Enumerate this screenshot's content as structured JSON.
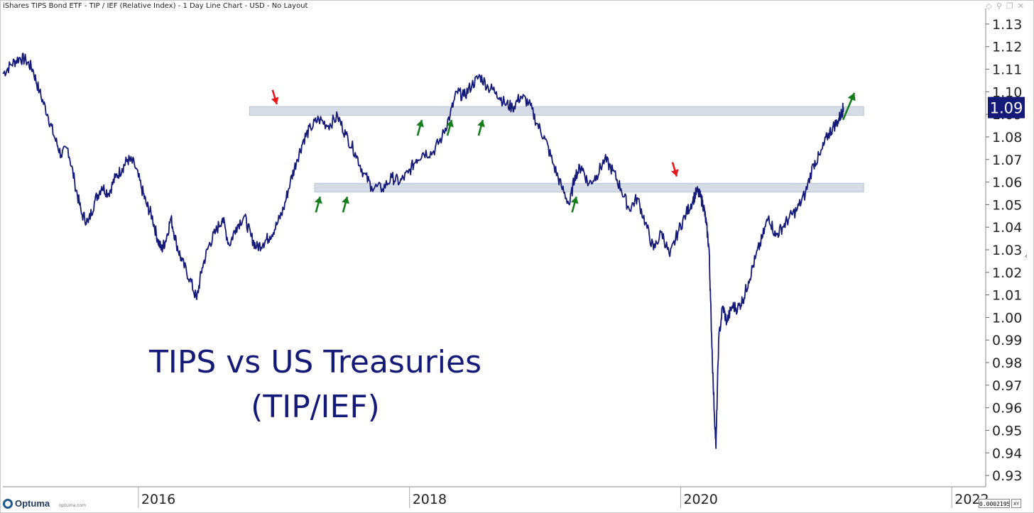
{
  "window": {
    "title": "iShares TIPS Bond ETF - TIP / IEF (Relative Index) - 1 Day Line Chart - USD - No Layout"
  },
  "footer": {
    "brand": "Optuma",
    "brand_url": "optuma.com",
    "corner_value": "0.0002195",
    "corner_xy": "XY"
  },
  "colors": {
    "line": "#141a78",
    "band": "#d6dce6",
    "red_arrow": "#e8171b",
    "green_arrow": "#167d1c",
    "price_badge": "#141a78",
    "annotation_text": "#141a78"
  },
  "chart_data": {
    "type": "line",
    "title": "",
    "annotation": [
      "TIPS vs US Treasuries",
      "(TIP/IEF)"
    ],
    "xlabel": "",
    "ylabel": "",
    "x_range": [
      2015.0,
      2022.25
    ],
    "ylim": [
      0.925,
      1.135
    ],
    "y_ticks": [
      0.93,
      0.94,
      0.95,
      0.96,
      0.97,
      0.98,
      0.99,
      1.0,
      1.01,
      1.02,
      1.03,
      1.04,
      1.05,
      1.06,
      1.07,
      1.08,
      1.09,
      1.1,
      1.11,
      1.12,
      1.13
    ],
    "y_tick_labels": [
      "0.93",
      "0.94",
      "0.95",
      "0.96",
      "0.97",
      "0.98",
      "0.99",
      "1.00",
      "1.01",
      "1.02",
      "1.03",
      "1.04",
      "1.05",
      "1.06",
      "1.07",
      "1.08",
      "1.09",
      "1.10",
      "1.11",
      "1.12",
      "1.13"
    ],
    "x_ticks": [
      2016,
      2018,
      2020,
      2022
    ],
    "x_tick_labels": [
      "2016",
      "2018",
      "2020",
      "2022"
    ],
    "last_value_label": "1.09",
    "last_value": 1.093,
    "series": [
      {
        "name": "TIP / IEF",
        "x": [
          2015.0,
          2015.06,
          2015.12,
          2015.17,
          2015.22,
          2015.27,
          2015.33,
          2015.38,
          2015.43,
          2015.48,
          2015.53,
          2015.58,
          2015.63,
          2015.68,
          2015.73,
          2015.78,
          2015.83,
          2015.88,
          2015.92,
          2015.97,
          2016.02,
          2016.06,
          2016.1,
          2016.14,
          2016.17,
          2016.2,
          2016.24,
          2016.28,
          2016.32,
          2016.38,
          2016.43,
          2016.47,
          2016.52,
          2016.57,
          2016.62,
          2016.67,
          2016.72,
          2016.78,
          2016.83,
          2016.87,
          2016.92,
          2016.97,
          2017.02,
          2017.07,
          2017.12,
          2017.17,
          2017.22,
          2017.27,
          2017.33,
          2017.4,
          2017.47,
          2017.53,
          2017.6,
          2017.66,
          2017.72,
          2017.8,
          2017.87,
          2017.93,
          2017.99,
          2018.05,
          2018.1,
          2018.17,
          2018.24,
          2018.3,
          2018.35,
          2018.4,
          2018.46,
          2018.52,
          2018.58,
          2018.64,
          2018.7,
          2018.76,
          2018.82,
          2018.88,
          2018.94,
          2019.0,
          2019.06,
          2019.12,
          2019.18,
          2019.22,
          2019.27,
          2019.32,
          2019.38,
          2019.44,
          2019.5,
          2019.56,
          2019.62,
          2019.68,
          2019.74,
          2019.8,
          2019.86,
          2019.92,
          2019.98,
          2020.04,
          2020.09,
          2020.12,
          2020.15,
          2020.17,
          2020.19,
          2020.21,
          2020.22,
          2020.24,
          2020.26,
          2020.28,
          2020.31,
          2020.34,
          2020.38,
          2020.42,
          2020.46,
          2020.5,
          2020.55,
          2020.6,
          2020.65,
          2020.7,
          2020.75,
          2020.8,
          2020.86,
          2020.92,
          2020.98,
          2021.03,
          2021.08,
          2021.12,
          2021.16,
          2021.19,
          2021.2
        ],
        "y": [
          1.108,
          1.112,
          1.115,
          1.114,
          1.11,
          1.1,
          1.09,
          1.08,
          1.072,
          1.075,
          1.06,
          1.046,
          1.042,
          1.052,
          1.058,
          1.055,
          1.062,
          1.066,
          1.07,
          1.068,
          1.058,
          1.05,
          1.045,
          1.035,
          1.03,
          1.034,
          1.044,
          1.033,
          1.025,
          1.017,
          1.008,
          1.022,
          1.032,
          1.038,
          1.044,
          1.032,
          1.04,
          1.045,
          1.036,
          1.031,
          1.033,
          1.036,
          1.041,
          1.048,
          1.06,
          1.07,
          1.079,
          1.084,
          1.088,
          1.085,
          1.089,
          1.081,
          1.073,
          1.064,
          1.058,
          1.057,
          1.062,
          1.06,
          1.064,
          1.07,
          1.073,
          1.073,
          1.08,
          1.09,
          1.1,
          1.098,
          1.103,
          1.107,
          1.102,
          1.1,
          1.095,
          1.093,
          1.098,
          1.095,
          1.086,
          1.079,
          1.068,
          1.058,
          1.05,
          1.063,
          1.067,
          1.059,
          1.063,
          1.07,
          1.065,
          1.057,
          1.048,
          1.053,
          1.042,
          1.03,
          1.038,
          1.027,
          1.038,
          1.046,
          1.052,
          1.056,
          1.053,
          1.049,
          1.041,
          1.03,
          1.008,
          0.97,
          0.942,
          0.99,
          1.005,
          0.998,
          1.005,
          1.004,
          1.008,
          1.016,
          1.026,
          1.035,
          1.045,
          1.036,
          1.04,
          1.044,
          1.048,
          1.055,
          1.068,
          1.072,
          1.08,
          1.084,
          1.087,
          1.091,
          1.093
        ]
      }
    ],
    "bands": [
      {
        "x_start": 2016.82,
        "x_end": 2021.35,
        "y_low": 1.0905,
        "y_high": 1.0925
      },
      {
        "x_start": 2017.3,
        "x_end": 2021.35,
        "y_low": 1.0565,
        "y_high": 1.0585
      }
    ],
    "red_arrows": [
      {
        "x": 2017.0,
        "y": 1.092
      },
      {
        "x": 2019.95,
        "y": 1.06
      }
    ],
    "green_arrows": [
      {
        "x": 2017.33,
        "y": 1.056
      },
      {
        "x": 2017.53,
        "y": 1.056
      },
      {
        "x": 2018.08,
        "y": 1.09
      },
      {
        "x": 2018.3,
        "y": 1.09
      },
      {
        "x": 2018.53,
        "y": 1.09
      },
      {
        "x": 2019.22,
        "y": 1.056
      },
      {
        "x": 2021.25,
        "y": 1.097
      }
    ]
  }
}
